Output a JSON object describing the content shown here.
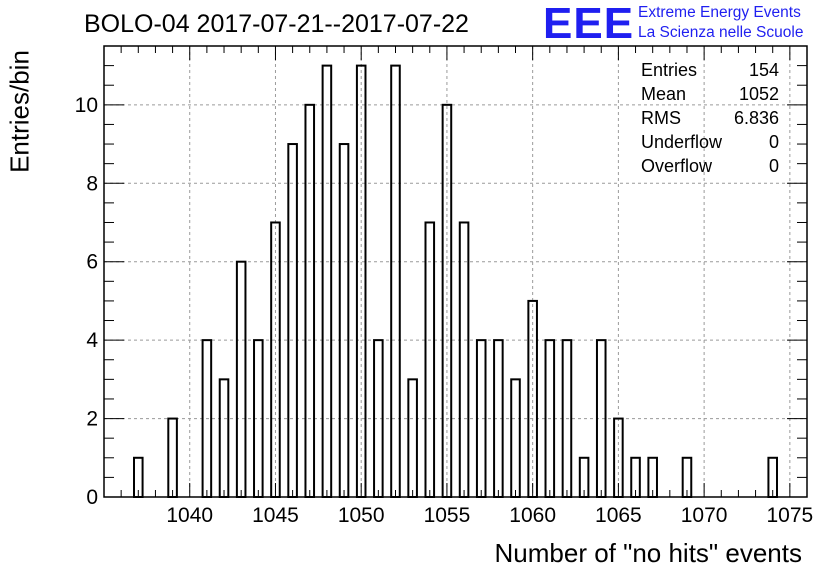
{
  "title": "BOLO-04 2017-07-21--2017-07-22",
  "logo": {
    "letters": "EEE",
    "line1": "Extreme Energy Events",
    "line2": "La Scienza nelle Scuole",
    "color": "#1f1ff0"
  },
  "stats": {
    "entries_label": "Entries",
    "entries_value": "154",
    "mean_label": "Mean",
    "mean_value": "1052",
    "rms_label": "RMS",
    "rms_value": "6.836",
    "underflow_label": "Underflow",
    "underflow_value": "0",
    "overflow_label": "Overflow",
    "overflow_value": "0"
  },
  "chart_data": {
    "type": "bar",
    "histogram": true,
    "title": "BOLO-04 2017-07-21--2017-07-22",
    "xlabel": "Number of \"no hits\" events",
    "ylabel": "Entries/bin",
    "xlim": [
      1035,
      1076
    ],
    "ylim": [
      0,
      11.5
    ],
    "bin_width": 0.5,
    "xticks": [
      1040,
      1045,
      1050,
      1055,
      1060,
      1065,
      1070,
      1075
    ],
    "yticks": [
      0,
      2,
      4,
      6,
      8,
      10
    ],
    "grid": true,
    "legend": "none",
    "bins": [
      {
        "x": 1037,
        "value": 1
      },
      {
        "x": 1039,
        "value": 2
      },
      {
        "x": 1041,
        "value": 4
      },
      {
        "x": 1042,
        "value": 3
      },
      {
        "x": 1043,
        "value": 6
      },
      {
        "x": 1044,
        "value": 4
      },
      {
        "x": 1045,
        "value": 7
      },
      {
        "x": 1046,
        "value": 9
      },
      {
        "x": 1047,
        "value": 10
      },
      {
        "x": 1048,
        "value": 11
      },
      {
        "x": 1049,
        "value": 9
      },
      {
        "x": 1050,
        "value": 11
      },
      {
        "x": 1051,
        "value": 4
      },
      {
        "x": 1052,
        "value": 11
      },
      {
        "x": 1053,
        "value": 3
      },
      {
        "x": 1054,
        "value": 7
      },
      {
        "x": 1055,
        "value": 10
      },
      {
        "x": 1056,
        "value": 7
      },
      {
        "x": 1057,
        "value": 4
      },
      {
        "x": 1058,
        "value": 4
      },
      {
        "x": 1059,
        "value": 3
      },
      {
        "x": 1060,
        "value": 5
      },
      {
        "x": 1061,
        "value": 4
      },
      {
        "x": 1062,
        "value": 4
      },
      {
        "x": 1063,
        "value": 1
      },
      {
        "x": 1064,
        "value": 4
      },
      {
        "x": 1065,
        "value": 2
      },
      {
        "x": 1066,
        "value": 1
      },
      {
        "x": 1067,
        "value": 1
      },
      {
        "x": 1069,
        "value": 1
      },
      {
        "x": 1074,
        "value": 1
      }
    ]
  }
}
